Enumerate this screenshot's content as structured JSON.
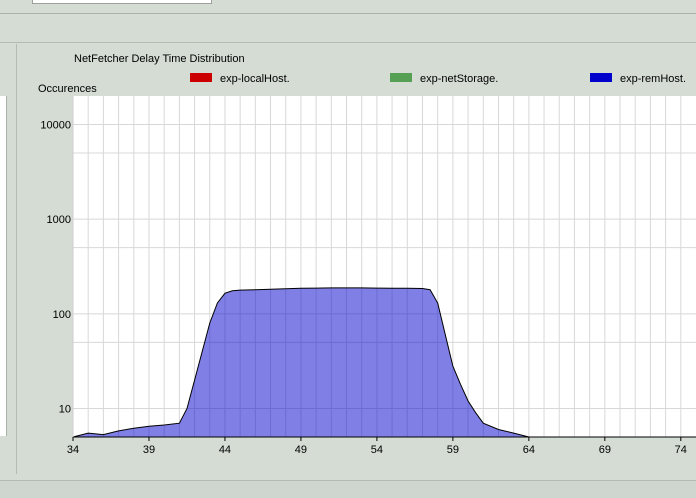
{
  "chart_data": {
    "type": "area",
    "title": "NetFetcher Delay Time Distribution",
    "ylabel": "Occurences",
    "xlabel": "",
    "y_scale": "log",
    "xlim": [
      34,
      75
    ],
    "ylim": [
      5,
      20000
    ],
    "x_ticks": [
      "34",
      "39",
      "44",
      "49",
      "54",
      "59",
      "64",
      "69",
      "74"
    ],
    "y_ticks": [
      {
        "label": "10",
        "value": 10
      },
      {
        "label": "100",
        "value": 100
      },
      {
        "label": "1000",
        "value": 1000
      },
      {
        "label": "10000",
        "value": 10000
      }
    ],
    "grid": true,
    "legend_position": "top",
    "series": [
      {
        "name": "exp-localHost.",
        "color": "#cc0000",
        "points": [
          [
            34,
            5
          ],
          [
            75,
            5
          ]
        ]
      },
      {
        "name": "exp-netStorage.",
        "color": "#55a055",
        "points": [
          [
            34,
            5
          ],
          [
            75,
            5
          ]
        ]
      },
      {
        "name": "exp-remHost.",
        "color": "#0000cc",
        "points": [
          [
            34,
            5
          ],
          [
            35,
            5.5
          ],
          [
            36,
            5.3
          ],
          [
            37,
            5.8
          ],
          [
            38,
            6.2
          ],
          [
            39,
            6.5
          ],
          [
            40,
            6.7
          ],
          [
            41,
            7
          ],
          [
            41.5,
            10
          ],
          [
            42,
            20
          ],
          [
            42.5,
            40
          ],
          [
            43,
            80
          ],
          [
            43.5,
            130
          ],
          [
            44,
            165
          ],
          [
            44.5,
            175
          ],
          [
            45,
            178
          ],
          [
            46,
            180
          ],
          [
            47,
            182
          ],
          [
            48,
            184
          ],
          [
            49,
            186
          ],
          [
            50,
            187
          ],
          [
            51,
            188
          ],
          [
            52,
            188
          ],
          [
            53,
            188
          ],
          [
            54,
            187
          ],
          [
            55,
            186
          ],
          [
            56,
            186
          ],
          [
            57,
            185
          ],
          [
            57.5,
            180
          ],
          [
            58,
            130
          ],
          [
            58.5,
            60
          ],
          [
            59,
            28
          ],
          [
            59.5,
            18
          ],
          [
            60,
            12
          ],
          [
            60.5,
            9
          ],
          [
            61,
            7
          ],
          [
            62,
            6
          ],
          [
            63,
            5.5
          ],
          [
            64,
            5
          ],
          [
            75,
            5
          ]
        ]
      }
    ]
  }
}
